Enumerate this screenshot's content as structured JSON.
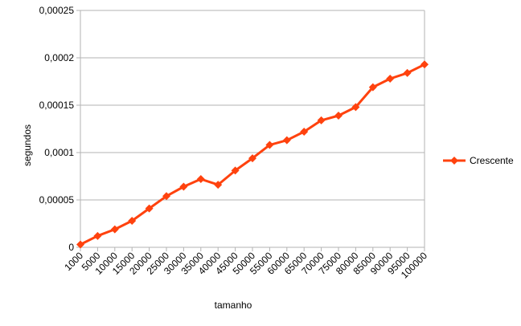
{
  "chart_data": {
    "type": "line",
    "title": "",
    "xlabel": "tamanho",
    "ylabel": "segundos",
    "categories": [
      "1000",
      "5000",
      "10000",
      "15000",
      "20000",
      "25000",
      "30000",
      "35000",
      "40000",
      "45000",
      "50000",
      "55000",
      "60000",
      "65000",
      "70000",
      "75000",
      "80000",
      "85000",
      "90000",
      "95000",
      "100000"
    ],
    "y_ticks": [
      "0",
      "0,00005",
      "0,0001",
      "0,00015",
      "0,0002",
      "0,00025"
    ],
    "ylim": [
      0,
      0.00025
    ],
    "grid": "horizontal",
    "legend_position": "right",
    "series": [
      {
        "name": "Crescente",
        "color": "#ff420e",
        "marker": "diamond",
        "values": [
          3e-06,
          1.2e-05,
          1.9e-05,
          2.8e-05,
          4.1e-05,
          5.4e-05,
          6.4e-05,
          7.2e-05,
          6.6e-05,
          8.1e-05,
          9.4e-05,
          0.000108,
          0.000113,
          0.000122,
          0.000134,
          0.000139,
          0.000148,
          0.000169,
          0.000178,
          0.000184,
          0.000193
        ]
      }
    ]
  }
}
